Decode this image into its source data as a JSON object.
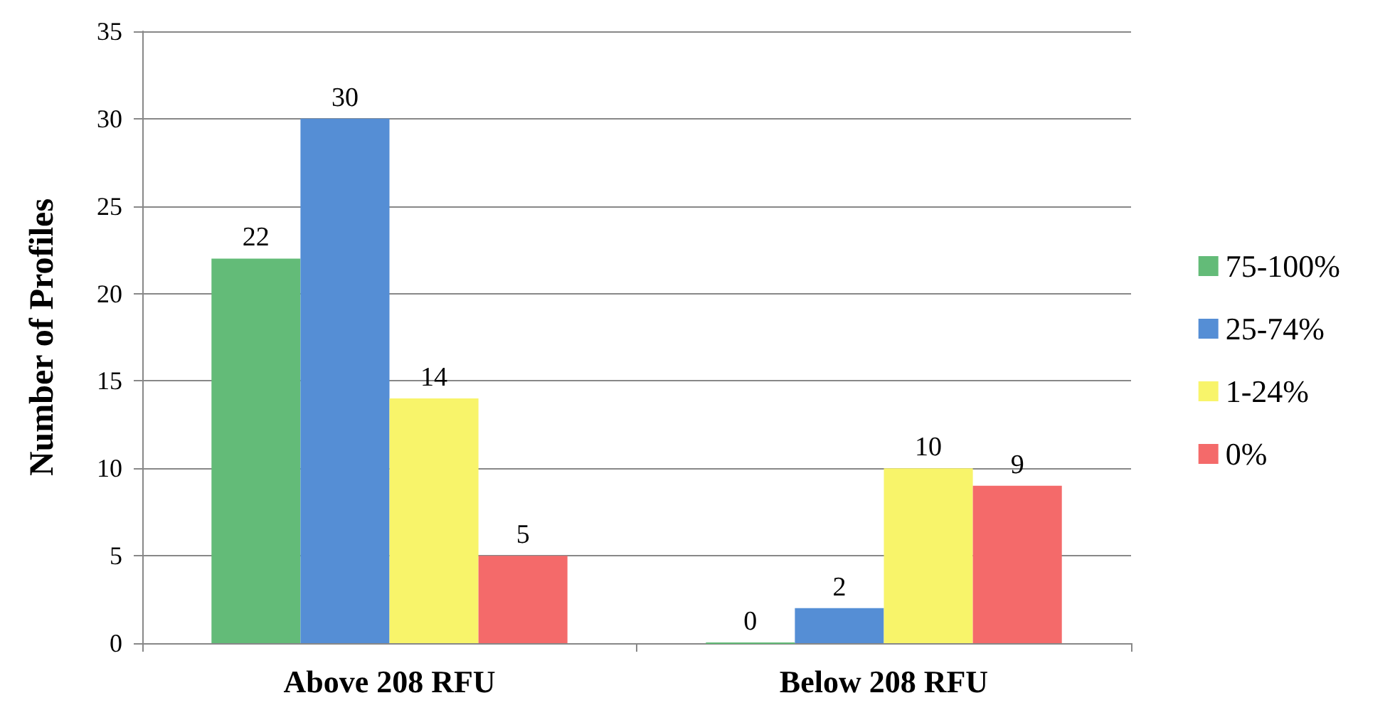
{
  "chart_data": {
    "type": "bar",
    "ylabel": "Number of Profiles",
    "categories": [
      "Above 208 RFU",
      "Below 208 RFU"
    ],
    "series": [
      {
        "name": "75-100%",
        "color": "#63bb78",
        "values": [
          22,
          0
        ]
      },
      {
        "name": "25-74%",
        "color": "#558ed5",
        "values": [
          30,
          2
        ]
      },
      {
        "name": "1-24%",
        "color": "#f8f46a",
        "values": [
          14,
          10
        ]
      },
      {
        "name": "0%",
        "color": "#f46a6a",
        "values": [
          5,
          9
        ]
      }
    ],
    "ylim": [
      0,
      35
    ],
    "yticks": [
      0,
      5,
      10,
      15,
      20,
      25,
      30,
      35
    ],
    "grid": "y",
    "legend": "right",
    "data_labels": true
  }
}
